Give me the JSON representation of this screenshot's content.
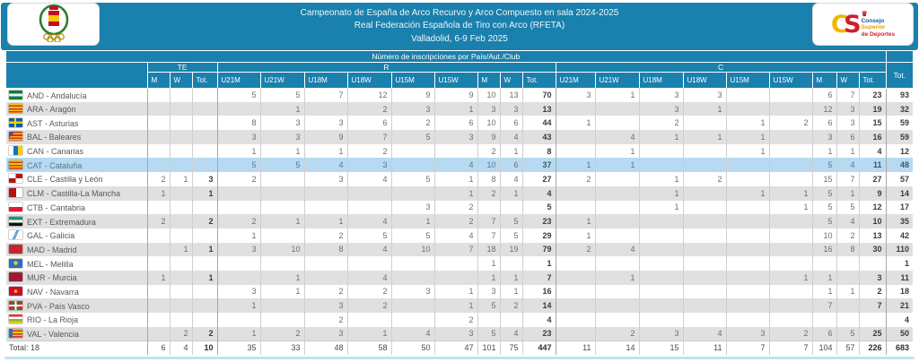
{
  "topbar": {
    "line1": "Campeonato de España de Arco Recurvo y Arco Compuesto en sala 2024-2025",
    "line2": "Real Federación Española de Tiro con Arco (RFETA)",
    "line3": "Valladolid, 6-9 Feb 2025"
  },
  "logos": {
    "left_icon": "rfeta-crest-icon",
    "right_icon": "csd-logo-icon",
    "csd_c": "C",
    "csd_s": "S",
    "csd_crown_icon": "crown-icon",
    "csd_lines": [
      "Consejo",
      "Superior",
      "de Deportes"
    ],
    "csd_line_colors": [
      "#0b5ba5",
      "#e8a000",
      "#cc1f2f"
    ]
  },
  "colors": {
    "header_teal": "#1a80ad",
    "row_alt": "#e0e0e0",
    "row_selected": "#b7d9f1",
    "grid_border": "#cfcfcf",
    "group_border": "#a8a8a8",
    "bottom_strip": "#bfe3f3"
  },
  "table": {
    "title": "Número de inscripciones por País/Aut./Club",
    "total_col_label": "Tot.",
    "groups": [
      {
        "label": "TE",
        "cols": [
          "M",
          "W",
          "Tot."
        ]
      },
      {
        "label": "R",
        "cols": [
          "U21M",
          "U21W",
          "U18M",
          "U18W",
          "U15M",
          "U15W",
          "M",
          "W",
          "Tot."
        ]
      },
      {
        "label": "C",
        "cols": [
          "U21M",
          "U21W",
          "U18M",
          "U18W",
          "U15M",
          "U15W",
          "M",
          "W",
          "Tot."
        ]
      }
    ],
    "rows": [
      {
        "code": "AND",
        "label": "AND - Andalucía",
        "selected": false,
        "flag": "linear-gradient(180deg,#0a7e3c 0 33%,#f2f2f2 33% 67%,#0a7e3c 67%)",
        "te": [
          "",
          "",
          ""
        ],
        "r": [
          5,
          5,
          7,
          12,
          9,
          9,
          10,
          13,
          70
        ],
        "c": [
          3,
          1,
          3,
          3,
          "",
          "",
          6,
          7,
          23
        ],
        "total": 93
      },
      {
        "code": "ARA",
        "label": "ARA - Aragón",
        "selected": false,
        "flag": "repeating-linear-gradient(180deg,#f7c600 0 1.6px,#d0302c 1.6px 3.2px)",
        "te": [
          "",
          "",
          ""
        ],
        "r": [
          "",
          1,
          "",
          2,
          3,
          1,
          3,
          3,
          13
        ],
        "c": [
          "",
          "",
          3,
          1,
          "",
          "",
          12,
          3,
          19
        ],
        "total": 32
      },
      {
        "code": "AST",
        "label": "AST - Asturias",
        "selected": false,
        "flag": "linear-gradient(90deg,transparent 40%,#f7d000 40% 55%,transparent 55%),linear-gradient(180deg,transparent 35%,#f7d000 35% 60%,transparent 60%),linear-gradient(180deg,#0a5ea8,#0a5ea8)",
        "te": [
          "",
          "",
          ""
        ],
        "r": [
          8,
          3,
          3,
          6,
          2,
          6,
          10,
          6,
          44
        ],
        "c": [
          1,
          "",
          2,
          "",
          1,
          2,
          6,
          3,
          15
        ],
        "total": 59
      },
      {
        "code": "BAL",
        "label": "BAL - Baleares",
        "selected": false,
        "flag": "linear-gradient(135deg,#6b4390 0 28%,transparent 28%),repeating-linear-gradient(180deg,#d0302c 0 1.6px,#f7c600 1.6px 3.2px)",
        "te": [
          "",
          "",
          ""
        ],
        "r": [
          3,
          3,
          9,
          7,
          5,
          3,
          9,
          4,
          43
        ],
        "c": [
          "",
          4,
          1,
          1,
          1,
          "",
          3,
          6,
          16
        ],
        "total": 59
      },
      {
        "code": "CAN",
        "label": "CAN - Canarias",
        "selected": false,
        "flag": "linear-gradient(90deg,#ffffff 0 33%,#1b6fb5 33% 67%,#f7d117 67%)",
        "te": [
          "",
          "",
          ""
        ],
        "r": [
          1,
          1,
          1,
          2,
          "",
          "",
          2,
          1,
          8
        ],
        "c": [
          "",
          1,
          "",
          "",
          1,
          "",
          1,
          1,
          4
        ],
        "total": 12
      },
      {
        "code": "CAT",
        "label": "CAT - Cataluña",
        "selected": true,
        "flag": "repeating-linear-gradient(180deg,#f7c600 0 1.6px,#d0302c 1.6px 3.2px)",
        "te": [
          "",
          "",
          ""
        ],
        "r": [
          5,
          5,
          4,
          3,
          "",
          4,
          10,
          6,
          37
        ],
        "c": [
          1,
          1,
          "",
          "",
          "",
          "",
          5,
          4,
          11
        ],
        "total": 48
      },
      {
        "code": "CLE",
        "label": "CLE - Castilla y León",
        "selected": false,
        "flag": "conic-gradient(#b5121b 0 25%,#ffffff 25% 50%,#b5121b 50% 75%,#ffffff 75%)",
        "te": [
          2,
          1,
          3
        ],
        "r": [
          2,
          "",
          3,
          4,
          5,
          1,
          8,
          4,
          27
        ],
        "c": [
          2,
          "",
          1,
          2,
          "",
          "",
          15,
          7,
          27
        ],
        "total": 57
      },
      {
        "code": "CLM",
        "label": "CLM - Castilla-La Mancha",
        "selected": false,
        "flag": "linear-gradient(90deg,#ad1519 0 55%,#ffffff 55%)",
        "te": [
          1,
          "",
          1
        ],
        "r": [
          "",
          "",
          "",
          "",
          "",
          1,
          2,
          1,
          4
        ],
        "c": [
          "",
          "",
          1,
          "",
          1,
          1,
          5,
          1,
          9
        ],
        "total": 14
      },
      {
        "code": "CTB",
        "label": "CTB - Cantabria",
        "selected": false,
        "flag": "linear-gradient(180deg,#ffffff 0 50%,#dd1c2e 50%)",
        "te": [
          "",
          "",
          ""
        ],
        "r": [
          "",
          "",
          "",
          "",
          3,
          2,
          "",
          "",
          5
        ],
        "c": [
          "",
          "",
          1,
          "",
          "",
          1,
          5,
          5,
          12
        ],
        "total": 17
      },
      {
        "code": "EXT",
        "label": "EXT - Extremadura",
        "selected": false,
        "flag": "linear-gradient(180deg,#169b62 0 33%,#ffffff 33% 67%,#111111 67%)",
        "te": [
          2,
          "",
          2
        ],
        "r": [
          2,
          1,
          1,
          4,
          1,
          2,
          7,
          5,
          23
        ],
        "c": [
          1,
          "",
          "",
          "",
          "",
          "",
          5,
          4,
          10
        ],
        "total": 35
      },
      {
        "code": "GAL",
        "label": "GAL - Galicia",
        "selected": false,
        "flag": "linear-gradient(115deg,#ffffff 0 42%,#66a3d8 42% 58%,#ffffff 58%)",
        "te": [
          "",
          "",
          ""
        ],
        "r": [
          1,
          "",
          2,
          5,
          5,
          4,
          7,
          5,
          29
        ],
        "c": [
          1,
          "",
          "",
          "",
          "",
          "",
          10,
          2,
          13
        ],
        "total": 42
      },
      {
        "code": "MAD",
        "label": "MAD - Madrid",
        "selected": false,
        "flag": "linear-gradient(180deg,#c4262e,#c4262e)",
        "te": [
          "",
          1,
          1
        ],
        "r": [
          3,
          10,
          8,
          4,
          10,
          7,
          18,
          19,
          79
        ],
        "c": [
          2,
          4,
          "",
          "",
          "",
          "",
          16,
          8,
          30
        ],
        "total": 110
      },
      {
        "code": "MEL",
        "label": "MEL - Melilla",
        "selected": false,
        "flag": "radial-gradient(circle at 50% 45%,#f2c233 0 2px,transparent 2.5px),linear-gradient(180deg,#2a70bd,#2a70bd)",
        "te": [
          "",
          "",
          ""
        ],
        "r": [
          "",
          "",
          "",
          "",
          "",
          "",
          1,
          "",
          1
        ],
        "c": [
          "",
          "",
          "",
          "",
          "",
          "",
          "",
          "",
          ""
        ],
        "total": 1
      },
      {
        "code": "MUR",
        "label": "MUR - Murcia",
        "selected": false,
        "flag": "linear-gradient(180deg,#9c1b31,#9c1b31)",
        "te": [
          1,
          "",
          1
        ],
        "r": [
          "",
          1,
          "",
          4,
          "",
          "",
          1,
          1,
          7
        ],
        "c": [
          "",
          1,
          "",
          "",
          "",
          1,
          1,
          "",
          3
        ],
        "total": 11
      },
      {
        "code": "NAV",
        "label": "NAV - Navarra",
        "selected": false,
        "flag": "radial-gradient(circle at 50% 50%,#f2c233 0 1.5px,transparent 2px),linear-gradient(180deg,#d00b27,#d00b27)",
        "te": [
          "",
          "",
          ""
        ],
        "r": [
          3,
          1,
          2,
          2,
          3,
          1,
          3,
          1,
          16
        ],
        "c": [
          "",
          "",
          "",
          "",
          "",
          "",
          1,
          1,
          2
        ],
        "total": 18
      },
      {
        "code": "PVA",
        "label": "PVA - País Vasco",
        "selected": false,
        "flag": "linear-gradient(0deg,transparent 42%,#ffffff 42% 58%,transparent 58%),linear-gradient(90deg,transparent 44%,#ffffff 44% 56%,transparent 56%),linear-gradient(45deg,transparent 46%,#00904a 46% 54%,transparent 54%),linear-gradient(135deg,transparent 46%,#00904a 46% 54%,transparent 54%),linear-gradient(180deg,#d52b1e,#d52b1e)",
        "te": [
          "",
          "",
          ""
        ],
        "r": [
          1,
          "",
          3,
          2,
          "",
          1,
          5,
          2,
          14
        ],
        "c": [
          "",
          "",
          "",
          "",
          "",
          "",
          7,
          "",
          7
        ],
        "total": 21
      },
      {
        "code": "RIO",
        "label": "RIO - La Rioja",
        "selected": false,
        "flag": "linear-gradient(180deg,#e0392f 0 25%,#ffffff 25% 50%,#74b843 50% 75%,#f7c600 75%)",
        "te": [
          "",
          "",
          ""
        ],
        "r": [
          "",
          "",
          2,
          "",
          "",
          2,
          "",
          "",
          4
        ],
        "c": [
          "",
          "",
          "",
          "",
          "",
          "",
          "",
          "",
          ""
        ],
        "total": 4
      },
      {
        "code": "VAL",
        "label": "VAL - Valencia",
        "selected": false,
        "flag": "linear-gradient(90deg,#2a70bd 0 27%,transparent 27%),repeating-linear-gradient(180deg,#f7c600 0 1.6px,#d0302c 1.6px 3.2px)",
        "te": [
          "",
          2,
          2
        ],
        "r": [
          1,
          2,
          3,
          1,
          4,
          3,
          5,
          4,
          23
        ],
        "c": [
          "",
          2,
          3,
          4,
          3,
          2,
          6,
          5,
          25
        ],
        "total": 50
      }
    ],
    "total_row": {
      "label": "Total: 18",
      "te": [
        6,
        4,
        10
      ],
      "r": [
        35,
        33,
        48,
        58,
        50,
        47,
        101,
        75,
        447
      ],
      "c": [
        11,
        14,
        15,
        11,
        7,
        7,
        104,
        57,
        226
      ],
      "total": 683
    }
  }
}
